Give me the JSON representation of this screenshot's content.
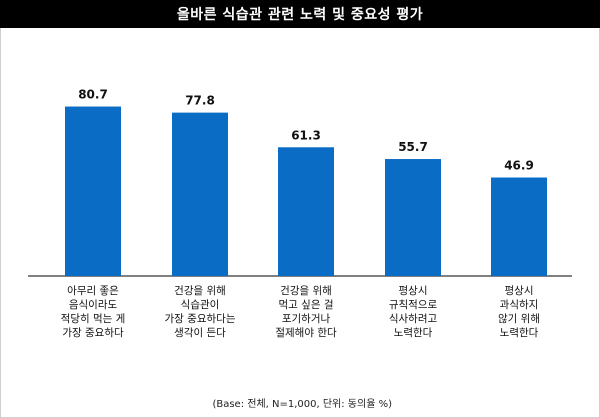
{
  "chart_data": {
    "type": "bar",
    "title": "올바른 식습관 관련 노력 및 중요성 평가",
    "categories": [
      [
        "아무리 좋은",
        "음식이라도",
        "적당히 먹는 게",
        "가장 중요하다"
      ],
      [
        "건강을 위해",
        "식습관이",
        "가장 중요하다는",
        "생각이 든다"
      ],
      [
        "건강을 위해",
        "먹고 싶은 걸",
        "포기하거나",
        "절제해야 한다"
      ],
      [
        "평상시",
        "규칙적으로",
        "식사하려고",
        "노력한다"
      ],
      [
        "평상시",
        "과식하지",
        "않기 위해",
        "노력한다"
      ]
    ],
    "values": [
      80.7,
      77.8,
      61.3,
      55.7,
      46.9
    ],
    "value_labels": [
      "80.7",
      "77.8",
      "61.3",
      "55.7",
      "46.9"
    ],
    "bar_color": "#0a6cc4",
    "ylim": [
      0,
      100
    ],
    "grid": false,
    "legend": "none"
  },
  "footnote": "(Base: 전체, N=1,000, 단위: 동의율 %)"
}
